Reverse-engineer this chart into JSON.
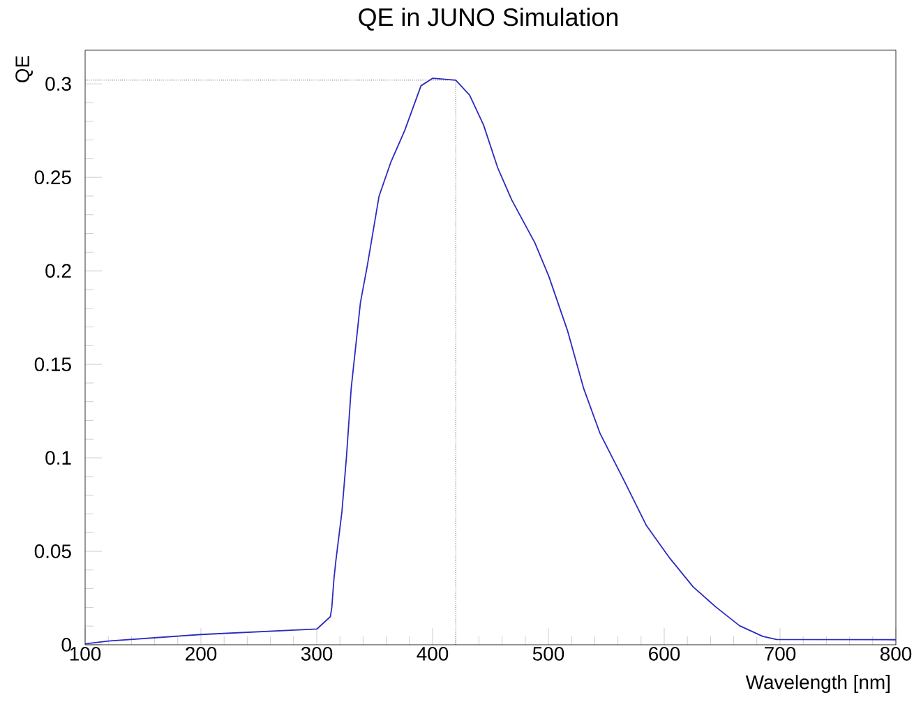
{
  "chart_data": {
    "type": "line",
    "title": "QE in JUNO Simulation",
    "xlabel": "Wavelength [nm]",
    "ylabel": "QE",
    "x": [
      100,
      120,
      200,
      300,
      311.7,
      313,
      314.8,
      316.5,
      321.7,
      325.7,
      329.7,
      337.7,
      343.7,
      353.8,
      363.9,
      375.9,
      390,
      400,
      420,
      432,
      444,
      456.3,
      468.3,
      488.3,
      500.4,
      516.5,
      530.5,
      544.6,
      564.7,
      584.7,
      604.8,
      624.9,
      645,
      665,
      685,
      697,
      800
    ],
    "series": [
      {
        "color": "#2b2bbf",
        "values": [
          0.0005,
          0.002,
          0.0055,
          0.0084,
          0.015,
          0.02,
          0.035,
          0.045,
          0.071,
          0.101,
          0.137,
          0.183,
          0.203,
          0.24,
          0.258,
          0.275,
          0.299,
          0.303,
          0.302,
          0.294,
          0.278,
          0.255,
          0.238,
          0.215,
          0.197,
          0.168,
          0.137,
          0.113,
          0.0886,
          0.0637,
          0.0463,
          0.031,
          0.02,
          0.0102,
          0.0045,
          0.0028,
          0.0027
        ]
      }
    ],
    "xlim": [
      100,
      800
    ],
    "ylim": [
      0,
      0.318
    ],
    "xticks": [
      100,
      200,
      300,
      400,
      500,
      600,
      700,
      800
    ],
    "yticks": [
      0,
      0.05,
      0.1,
      0.15,
      0.2,
      0.25,
      0.3
    ],
    "ref_lines": [
      {
        "axis": "x",
        "value": 420,
        "line_style": "dotted",
        "color": "#000000"
      },
      {
        "axis": "y",
        "value": 0.302,
        "line_style": "dotted",
        "color": "#000000"
      }
    ],
    "grid": false,
    "marker": "none",
    "line_style": "solid"
  }
}
